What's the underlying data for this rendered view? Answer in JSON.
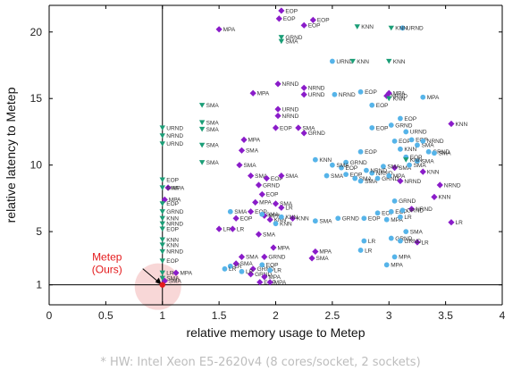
{
  "chart_data": {
    "type": "scatter",
    "xlabel": "relative memory usage to Metep",
    "ylabel": "relative latency to Metep",
    "xlim": [
      0,
      4
    ],
    "ylim": [
      -0.5,
      22
    ],
    "xticks": [
      0,
      0.5,
      1,
      1.5,
      2,
      2.5,
      3,
      3.5,
      4
    ],
    "xtick_labels": [
      "0",
      "0.5",
      "1",
      "1.5",
      "2",
      "2.5",
      "3",
      "3.5",
      "4"
    ],
    "yticks": [
      1,
      5,
      10,
      15,
      20
    ],
    "ytick_labels": [
      "1",
      "5",
      "10",
      "15",
      "20"
    ],
    "reference_lines": {
      "x": 1,
      "y": 1
    },
    "annotation": {
      "text_line1": "Metep",
      "text_line2": "(Ours)",
      "x": 1,
      "y": 1
    },
    "colors": {
      "purple": "#8a1cc9",
      "blue": "#56b4e9",
      "green": "#1b9e77",
      "red": "#e41a1c"
    },
    "series": [
      {
        "marker": "diamond",
        "color": "purple",
        "points": [
          {
            "x": 2.05,
            "y": 21.6,
            "label": "EOP"
          },
          {
            "x": 2.03,
            "y": 21.0,
            "label": "EOP"
          },
          {
            "x": 2.33,
            "y": 20.9,
            "label": "EOP"
          },
          {
            "x": 2.25,
            "y": 20.5,
            "label": "EOP"
          },
          {
            "x": 1.5,
            "y": 20.2,
            "label": "MPA"
          },
          {
            "x": 2.02,
            "y": 16.1,
            "label": "NRND"
          },
          {
            "x": 2.25,
            "y": 15.8,
            "label": "NRND"
          },
          {
            "x": 2.25,
            "y": 15.3,
            "label": "URND"
          },
          {
            "x": 1.8,
            "y": 15.4,
            "label": "MPA"
          },
          {
            "x": 2.02,
            "y": 14.2,
            "label": "URND"
          },
          {
            "x": 2.02,
            "y": 13.7,
            "label": "NRND"
          },
          {
            "x": 2.0,
            "y": 12.8,
            "label": "EOP"
          },
          {
            "x": 2.2,
            "y": 12.8,
            "label": "SMA"
          },
          {
            "x": 2.25,
            "y": 12.4,
            "label": "GRND"
          },
          {
            "x": 1.72,
            "y": 11.9,
            "label": "MPA"
          },
          {
            "x": 3.55,
            "y": 13.1,
            "label": "KNN"
          },
          {
            "x": 3.0,
            "y": 15.4,
            "label": "MPA"
          },
          {
            "x": 2.98,
            "y": 15.2,
            "label": "NRND"
          },
          {
            "x": 3.05,
            "y": 9.8,
            "label": "SMA"
          },
          {
            "x": 3.1,
            "y": 8.8,
            "label": "NRND"
          },
          {
            "x": 3.3,
            "y": 9.5,
            "label": "KNN"
          },
          {
            "x": 3.45,
            "y": 8.5,
            "label": "NRND"
          },
          {
            "x": 3.4,
            "y": 7.6,
            "label": "KNN"
          },
          {
            "x": 3.2,
            "y": 6.7,
            "label": "NRND"
          },
          {
            "x": 3.25,
            "y": 4.2,
            "label": "LR"
          },
          {
            "x": 3.55,
            "y": 5.7,
            "label": "LR"
          },
          {
            "x": 1.7,
            "y": 11.1,
            "label": "SMA"
          },
          {
            "x": 1.68,
            "y": 10.0,
            "label": "SMA"
          },
          {
            "x": 1.78,
            "y": 9.2,
            "label": "SMA"
          },
          {
            "x": 1.92,
            "y": 9.0,
            "label": "EOP"
          },
          {
            "x": 2.05,
            "y": 9.2,
            "label": "SMA"
          },
          {
            "x": 1.85,
            "y": 8.5,
            "label": "GRND"
          },
          {
            "x": 1.88,
            "y": 7.8,
            "label": "EOP"
          },
          {
            "x": 1.82,
            "y": 7.2,
            "label": "MPA"
          },
          {
            "x": 2.0,
            "y": 7.1,
            "label": "SMA"
          },
          {
            "x": 1.78,
            "y": 6.5,
            "label": "EOP"
          },
          {
            "x": 2.05,
            "y": 6.8,
            "label": "LR"
          },
          {
            "x": 1.9,
            "y": 6.2,
            "label": "MPA"
          },
          {
            "x": 1.65,
            "y": 6.0,
            "label": "EOP"
          },
          {
            "x": 2.15,
            "y": 6.0,
            "label": "KNN"
          },
          {
            "x": 1.95,
            "y": 5.9,
            "label": "KNN"
          },
          {
            "x": 1.5,
            "y": 5.2,
            "label": "LR"
          },
          {
            "x": 1.62,
            "y": 5.2,
            "label": "LR"
          },
          {
            "x": 1.85,
            "y": 4.8,
            "label": "SMA"
          },
          {
            "x": 1.98,
            "y": 3.8,
            "label": "MPA"
          },
          {
            "x": 2.35,
            "y": 3.5,
            "label": "MPA"
          },
          {
            "x": 2.32,
            "y": 3.0,
            "label": "SMA"
          },
          {
            "x": 1.9,
            "y": 3.1,
            "label": "GRND"
          },
          {
            "x": 1.7,
            "y": 3.1,
            "label": "SMA"
          },
          {
            "x": 1.65,
            "y": 2.6,
            "label": "SMA"
          },
          {
            "x": 1.8,
            "y": 2.2,
            "label": "GRND"
          },
          {
            "x": 1.78,
            "y": 1.8,
            "label": "GRND"
          },
          {
            "x": 1.9,
            "y": 1.6,
            "label": "MPA"
          },
          {
            "x": 1.86,
            "y": 1.2,
            "label": "EOP"
          },
          {
            "x": 1.95,
            "y": 1.2,
            "label": "MPA"
          },
          {
            "x": 1.12,
            "y": 1.9,
            "label": "MPA"
          },
          {
            "x": 1.02,
            "y": 7.4,
            "label": "MPA"
          },
          {
            "x": 1.05,
            "y": 8.3,
            "label": "MPA"
          },
          {
            "x": 1.02,
            "y": 1.3,
            "label": "SMA"
          }
        ]
      },
      {
        "marker": "circle",
        "color": "blue",
        "points": [
          {
            "x": 2.5,
            "y": 17.8,
            "label": "URND"
          },
          {
            "x": 2.75,
            "y": 15.5,
            "label": "EOP"
          },
          {
            "x": 2.52,
            "y": 15.3,
            "label": "NRND"
          },
          {
            "x": 3.12,
            "y": 20.3,
            "label": "URND"
          },
          {
            "x": 3.3,
            "y": 15.1,
            "label": "MPA"
          },
          {
            "x": 2.85,
            "y": 14.5,
            "label": "EOP"
          },
          {
            "x": 2.85,
            "y": 12.8,
            "label": "EOP"
          },
          {
            "x": 3.02,
            "y": 13.0,
            "label": "GRND"
          },
          {
            "x": 3.1,
            "y": 13.5,
            "label": "EOP"
          },
          {
            "x": 3.15,
            "y": 12.5,
            "label": "URND"
          },
          {
            "x": 3.05,
            "y": 11.8,
            "label": "EOP"
          },
          {
            "x": 3.2,
            "y": 11.9,
            "label": "EOP"
          },
          {
            "x": 3.25,
            "y": 11.5,
            "label": "SMA"
          },
          {
            "x": 3.3,
            "y": 11.8,
            "label": "NRND"
          },
          {
            "x": 3.1,
            "y": 11.2,
            "label": "KNN"
          },
          {
            "x": 3.35,
            "y": 11.0,
            "label": "GRND"
          },
          {
            "x": 3.15,
            "y": 10.6,
            "label": "EOP"
          },
          {
            "x": 3.4,
            "y": 10.9,
            "label": "SMA"
          },
          {
            "x": 3.25,
            "y": 10.3,
            "label": "SMA"
          },
          {
            "x": 3.18,
            "y": 10.0,
            "label": "SMA"
          },
          {
            "x": 2.95,
            "y": 9.9,
            "label": "SMA"
          },
          {
            "x": 2.75,
            "y": 11.0,
            "label": "EOP"
          },
          {
            "x": 2.62,
            "y": 10.2,
            "label": "GRND"
          },
          {
            "x": 2.58,
            "y": 9.8,
            "label": "EOP"
          },
          {
            "x": 2.5,
            "y": 10.0,
            "label": "SMA"
          },
          {
            "x": 2.35,
            "y": 10.4,
            "label": "KNN"
          },
          {
            "x": 2.45,
            "y": 9.2,
            "label": "SMA"
          },
          {
            "x": 2.62,
            "y": 9.3,
            "label": "EOP"
          },
          {
            "x": 2.7,
            "y": 9.0,
            "label": "SMA"
          },
          {
            "x": 2.85,
            "y": 9.4,
            "label": "NRND"
          },
          {
            "x": 2.75,
            "y": 8.8,
            "label": "SMA"
          },
          {
            "x": 2.8,
            "y": 9.6,
            "label": "NRND"
          },
          {
            "x": 2.9,
            "y": 9.0,
            "label": "GRND"
          },
          {
            "x": 3.0,
            "y": 9.2,
            "label": "MPA"
          },
          {
            "x": 3.05,
            "y": 7.3,
            "label": "GRND"
          },
          {
            "x": 2.9,
            "y": 6.4,
            "label": "EOP"
          },
          {
            "x": 3.02,
            "y": 6.5,
            "label": "EOP"
          },
          {
            "x": 3.12,
            "y": 6.6,
            "label": "GRND"
          },
          {
            "x": 2.78,
            "y": 6.0,
            "label": "EOP"
          },
          {
            "x": 2.98,
            "y": 5.9,
            "label": "MPA"
          },
          {
            "x": 3.1,
            "y": 6.1,
            "label": "LR"
          },
          {
            "x": 2.35,
            "y": 5.8,
            "label": "SMA"
          },
          {
            "x": 2.55,
            "y": 6.0,
            "label": "GRND"
          },
          {
            "x": 2.78,
            "y": 4.3,
            "label": "LR"
          },
          {
            "x": 2.75,
            "y": 3.6,
            "label": "LR"
          },
          {
            "x": 3.02,
            "y": 4.5,
            "label": "GRND"
          },
          {
            "x": 3.15,
            "y": 5.0,
            "label": "SMA"
          },
          {
            "x": 3.1,
            "y": 4.3,
            "label": "GRND"
          },
          {
            "x": 3.05,
            "y": 3.1,
            "label": "MPA"
          },
          {
            "x": 2.98,
            "y": 2.5,
            "label": "MPA"
          },
          {
            "x": 2.0,
            "y": 5.6,
            "label": "KNN"
          },
          {
            "x": 2.05,
            "y": 6.1,
            "label": "KNN"
          },
          {
            "x": 1.88,
            "y": 6.3,
            "label": "SMA"
          },
          {
            "x": 1.6,
            "y": 6.5,
            "label": "SMA"
          },
          {
            "x": 1.6,
            "y": 2.4,
            "label": "LR"
          },
          {
            "x": 1.7,
            "y": 2.0,
            "label": "LR"
          },
          {
            "x": 1.55,
            "y": 2.2,
            "label": "LR"
          },
          {
            "x": 1.95,
            "y": 2.1,
            "label": "LR"
          },
          {
            "x": 1.88,
            "y": 2.5,
            "label": "EOP"
          }
        ]
      },
      {
        "marker": "triangle-down",
        "color": "green",
        "points": [
          {
            "x": 2.72,
            "y": 20.4,
            "label": "KNN"
          },
          {
            "x": 3.02,
            "y": 20.3,
            "label": "KNN"
          },
          {
            "x": 3.0,
            "y": 17.8,
            "label": "KNN"
          },
          {
            "x": 2.68,
            "y": 17.8,
            "label": "KNN"
          },
          {
            "x": 2.05,
            "y": 19.6,
            "label": "GRND"
          },
          {
            "x": 2.05,
            "y": 19.3,
            "label": "SMA"
          },
          {
            "x": 1.35,
            "y": 14.5,
            "label": "SMA"
          },
          {
            "x": 1.35,
            "y": 13.2,
            "label": "SMA"
          },
          {
            "x": 1.35,
            "y": 12.7,
            "label": "SMA"
          },
          {
            "x": 1.35,
            "y": 11.5,
            "label": "SMA"
          },
          {
            "x": 1.35,
            "y": 10.2,
            "label": "SMA"
          },
          {
            "x": 3.0,
            "y": 15.0,
            "label": "KNN"
          },
          {
            "x": 3.15,
            "y": 10.4,
            "label": "KNN"
          },
          {
            "x": 1.0,
            "y": 12.8,
            "label": "URND"
          },
          {
            "x": 1.0,
            "y": 12.2,
            "label": "NRND"
          },
          {
            "x": 1.0,
            "y": 11.6,
            "label": "URND"
          },
          {
            "x": 1.0,
            "y": 8.9,
            "label": "EOP"
          },
          {
            "x": 1.0,
            "y": 8.3,
            "label": "SMA"
          },
          {
            "x": 1.0,
            "y": 7.1,
            "label": "EOP"
          },
          {
            "x": 1.0,
            "y": 6.5,
            "label": "GRND"
          },
          {
            "x": 1.0,
            "y": 6.0,
            "label": "KNN"
          },
          {
            "x": 1.0,
            "y": 5.6,
            "label": "NRND"
          },
          {
            "x": 1.0,
            "y": 5.2,
            "label": "EOP"
          },
          {
            "x": 1.0,
            "y": 4.4,
            "label": "KNN"
          },
          {
            "x": 1.0,
            "y": 4.0,
            "label": "KNN"
          },
          {
            "x": 1.0,
            "y": 3.5,
            "label": "NRND"
          },
          {
            "x": 1.0,
            "y": 2.8,
            "label": "EOP"
          },
          {
            "x": 1.0,
            "y": 1.9,
            "label": "LR"
          },
          {
            "x": 1.0,
            "y": 1.5,
            "label": "SMA"
          }
        ]
      }
    ]
  },
  "footnote": "* HW: Intel Xeon E5-2620v4 (8 cores/socket, 2 sockets)"
}
